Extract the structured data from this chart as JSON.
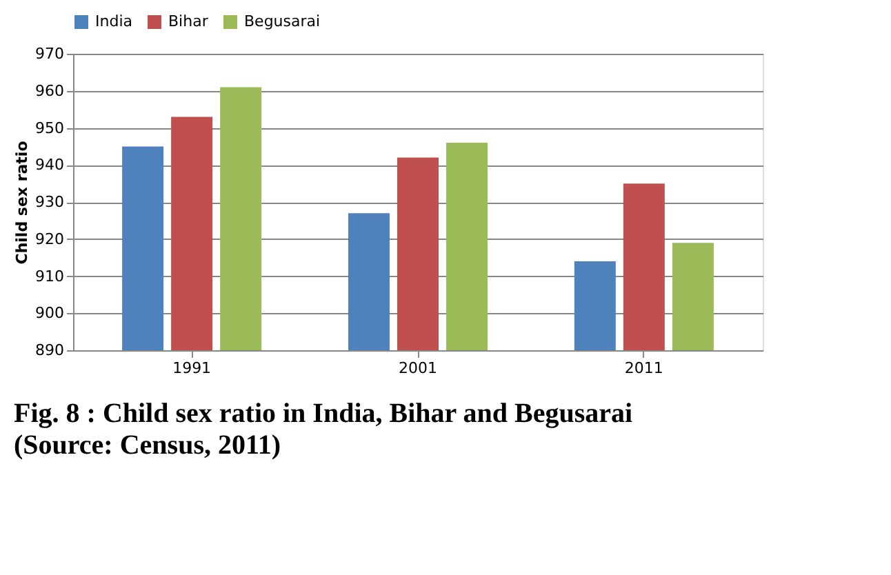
{
  "chart_data": {
    "type": "bar",
    "title": "Fig. 8 :   Child sex ratio in India, Bihar and Begusarai",
    "annotations": [
      "(Source: Census, 2011)"
    ],
    "ylabel": "Child sex ratio",
    "categories": [
      "1991",
      "2001",
      "2011"
    ],
    "series": [
      {
        "name": "India",
        "color": "#4f81bd",
        "values": [
          945,
          927,
          914
        ]
      },
      {
        "name": "Bihar",
        "color": "#c0504d",
        "values": [
          953,
          942,
          935
        ]
      },
      {
        "name": "Begusarai",
        "color": "#9bbb59",
        "values": [
          961,
          946,
          919
        ]
      }
    ],
    "ylim": [
      890,
      970
    ],
    "yticks": [
      890,
      900,
      910,
      920,
      930,
      940,
      950,
      960,
      970
    ],
    "grid": "y",
    "legend": "top"
  }
}
